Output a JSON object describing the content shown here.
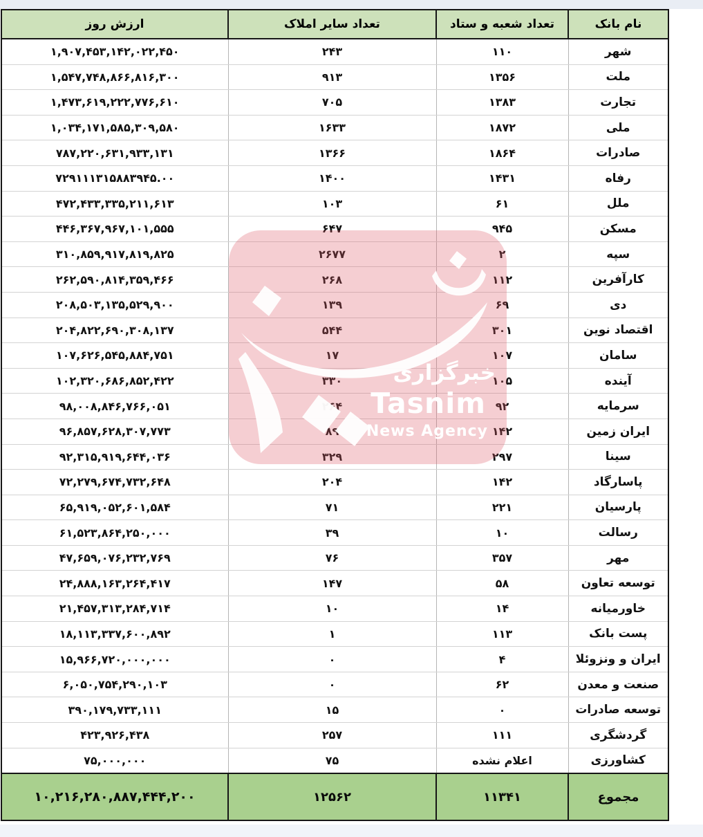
{
  "page": {
    "top_strip_color": "#e9edf4",
    "bottom_strip_color": "#f1f4f9",
    "background": "#ffffff"
  },
  "table": {
    "colors": {
      "header_bg": "#cde1ba",
      "total_bg": "#a9d08e",
      "border_dark": "#161616",
      "grid_horizontal": "#d3d3d3",
      "grid_vertical": "#b4b4b4"
    },
    "headers": {
      "name": "نام بانک",
      "branches": "تعداد شعبه و ستاد",
      "other_properties": "تعداد سایر املاک",
      "day_value": "ارزش روز"
    },
    "rows": [
      {
        "name": "شهر",
        "branches": "۱۱۰",
        "other_properties": "۲۴۳",
        "day_value": "۱,۹۰۷,۴۵۳,۱۴۲,۰۲۲,۴۵۰"
      },
      {
        "name": "ملت",
        "branches": "۱۳۵۶",
        "other_properties": "۹۱۳",
        "day_value": "۱,۵۴۷,۷۴۸,۸۶۶,۸۱۶,۳۰۰"
      },
      {
        "name": "تجارت",
        "branches": "۱۳۸۳",
        "other_properties": "۷۰۵",
        "day_value": "۱,۴۷۳,۶۱۹,۲۲۲,۷۷۶,۶۱۰"
      },
      {
        "name": "ملی",
        "branches": "۱۸۷۲",
        "other_properties": "۱۶۳۳",
        "day_value": "۱,۰۳۴,۱۷۱,۵۸۵,۳۰۹,۵۸۰"
      },
      {
        "name": "صادرات",
        "branches": "۱۸۶۴",
        "other_properties": "۱۳۶۶",
        "day_value": "۷۸۷,۲۲۰,۶۳۱,۹۳۳,۱۳۱"
      },
      {
        "name": "رفاه",
        "branches": "۱۴۳۱",
        "other_properties": "۱۴۰۰",
        "day_value": "۷۲۹۱۱۱۳۱۵۸۸۳۹۴۵.۰۰"
      },
      {
        "name": "ملل",
        "branches": "۶۱",
        "other_properties": "۱۰۳",
        "day_value": "۴۷۲,۴۳۳,۳۳۵,۲۱۱,۶۱۳"
      },
      {
        "name": "مسکن",
        "branches": "۹۴۵",
        "other_properties": "۶۴۷",
        "day_value": "۴۴۶,۳۶۷,۹۶۷,۱۰۱,۵۵۵"
      },
      {
        "name": "سپه",
        "branches": "۲",
        "other_properties": "۲۶۷۷",
        "day_value": "۳۱۰,۸۵۹,۹۱۷,۸۱۹,۸۲۵"
      },
      {
        "name": "کارآفرین",
        "branches": "۱۱۲",
        "other_properties": "۲۶۸",
        "day_value": "۲۶۲,۵۹۰,۸۱۴,۳۵۹,۴۶۶"
      },
      {
        "name": "دی",
        "branches": "۶۹",
        "other_properties": "۱۳۹",
        "day_value": "۲۰۸,۵۰۳,۱۳۵,۵۲۹,۹۰۰"
      },
      {
        "name": "اقتصاد نوین",
        "branches": "۳۰۱",
        "other_properties": "۵۴۴",
        "day_value": "۲۰۴,۸۲۲,۶۹۰,۳۰۸,۱۳۷"
      },
      {
        "name": "سامان",
        "branches": "۱۰۷",
        "other_properties": "۱۷",
        "day_value": "۱۰۷,۶۲۶,۵۴۵,۸۸۴,۷۵۱"
      },
      {
        "name": "آینده",
        "branches": "۱۰۵",
        "other_properties": "۳۳۰",
        "day_value": "۱۰۲,۳۲۰,۶۸۶,۸۵۲,۴۲۲"
      },
      {
        "name": "سرمایه",
        "branches": "۹۲",
        "other_properties": "۲۶۴",
        "day_value": "۹۸,۰۰۸,۸۴۶,۷۶۶,۰۵۱"
      },
      {
        "name": "ایران زمین",
        "branches": "۱۴۲",
        "other_properties": "۸۹",
        "day_value": "۹۶,۸۵۷,۶۲۸,۳۰۷,۷۷۳"
      },
      {
        "name": "سینا",
        "branches": "۲۹۷",
        "other_properties": "۳۲۹",
        "day_value": "۹۲,۳۱۵,۹۱۹,۶۴۴,۰۳۶"
      },
      {
        "name": "پاسارگاد",
        "branches": "۱۴۲",
        "other_properties": "۲۰۴",
        "day_value": "۷۲,۲۷۹,۶۷۴,۷۳۲,۶۴۸"
      },
      {
        "name": "پارسیان",
        "branches": "۲۲۱",
        "other_properties": "۷۱",
        "day_value": "۶۵,۹۱۹,۰۵۲,۶۰۱,۵۸۴"
      },
      {
        "name": "رسالت",
        "branches": "۱۰",
        "other_properties": "۳۹",
        "day_value": "۶۱,۵۲۳,۸۶۴,۲۵۰,۰۰۰"
      },
      {
        "name": "مهر",
        "branches": "۳۵۷",
        "other_properties": "۷۶",
        "day_value": "۴۷,۶۵۹,۰۷۶,۲۳۲,۷۶۹"
      },
      {
        "name": "توسعه تعاون",
        "branches": "۵۸",
        "other_properties": "۱۴۷",
        "day_value": "۲۴,۸۸۸,۱۶۳,۲۶۴,۴۱۷"
      },
      {
        "name": "خاورمیانه",
        "branches": "۱۴",
        "other_properties": "۱۰",
        "day_value": "۲۱,۴۵۷,۳۱۳,۲۸۴,۷۱۴"
      },
      {
        "name": "پست بانک",
        "branches": "۱۱۳",
        "other_properties": "۱",
        "day_value": "۱۸,۱۱۳,۳۳۷,۶۰۰,۸۹۲"
      },
      {
        "name": "ایران و ونزوئلا",
        "branches": "۴",
        "other_properties": "۰",
        "day_value": "۱۵,۹۶۶,۷۲۰,۰۰۰,۰۰۰"
      },
      {
        "name": "صنعت و معدن",
        "branches": "۶۲",
        "other_properties": "۰",
        "day_value": "۶,۰۵۰,۷۵۴,۲۹۰,۱۰۳"
      },
      {
        "name": "توسعه صادرات",
        "branches": "۰",
        "other_properties": "۱۵",
        "day_value": "۳۹۰,۱۷۹,۷۳۳,۱۱۱"
      },
      {
        "name": "گردشگری",
        "branches": "۱۱۱",
        "other_properties": "۲۵۷",
        "day_value": "۴۲۳,۹۲۶,۴۳۸"
      },
      {
        "name": "کشاورزی",
        "branches": "اعلام نشده",
        "other_properties": "۷۵",
        "day_value": "۷۵,۰۰۰,۰۰۰"
      }
    ],
    "total": {
      "name": "مجموع",
      "branches": "۱۱۳۴۱",
      "other_properties": "۱۲۵۶۲",
      "day_value": "۱۰,۲۱۶,۲۸۰,۸۸۷,۴۴۴,۲۰۰"
    }
  },
  "watermark": {
    "overlay_color": "rgba(222,92,105,0.30)",
    "text_fa": "خبرگزاری",
    "text_en": "Tasnim",
    "text_sub": "News Agency"
  }
}
